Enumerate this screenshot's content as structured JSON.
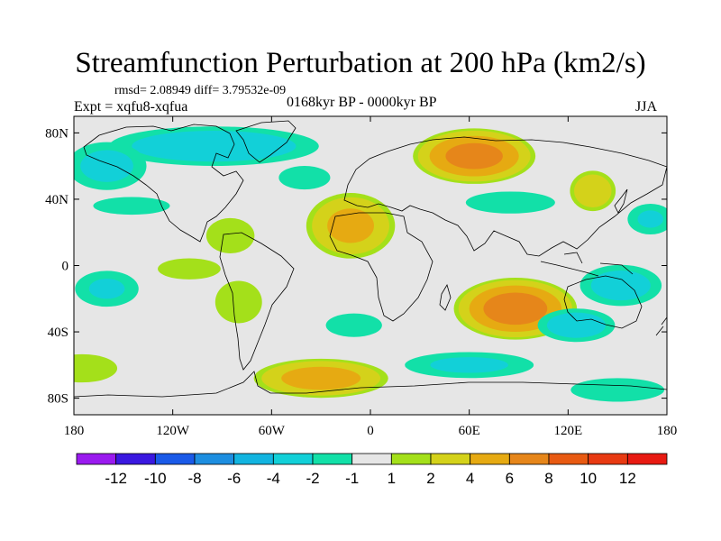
{
  "chart_data": {
    "type": "heatmap",
    "title": "Streamfunction Perturbation at 200 hPa (km2/s)",
    "stats_text": "rmsd= 2.08949  diff= 3.79532e-09",
    "left_string": "Expt = xqfu8-xqfua",
    "center_string": "0168kyr BP - 0000kyr BP",
    "right_string": "JJA",
    "xlim": [
      -180,
      180
    ],
    "ylim": [
      -90,
      90
    ],
    "x_ticks": [
      {
        "value": -180,
        "label": "180"
      },
      {
        "value": -120,
        "label": "120W"
      },
      {
        "value": -60,
        "label": "60W"
      },
      {
        "value": 0,
        "label": "0"
      },
      {
        "value": 60,
        "label": "60E"
      },
      {
        "value": 120,
        "label": "120E"
      },
      {
        "value": 180,
        "label": "180"
      }
    ],
    "y_ticks": [
      {
        "value": 80,
        "label": "80N"
      },
      {
        "value": 40,
        "label": "40N"
      },
      {
        "value": 0,
        "label": "0"
      },
      {
        "value": -40,
        "label": "40S"
      },
      {
        "value": -80,
        "label": "80S"
      }
    ],
    "contour_levels": [
      -12,
      -10,
      -8,
      -6,
      -4,
      -2,
      -1,
      1,
      2,
      4,
      6,
      8,
      10,
      12
    ],
    "colorbar_labels": [
      "-12",
      "-10",
      "-8",
      "-6",
      "-4",
      "-2",
      "-1",
      "1",
      "2",
      "4",
      "6",
      "8",
      "10",
      "12"
    ],
    "colorbar_colors": [
      "#9a1aef",
      "#3a18e0",
      "#1a5ae8",
      "#1d8ee0",
      "#12b4e0",
      "#12d0d8",
      "#12e0a8",
      "#e6e6e6",
      "#a4e01a",
      "#d4d21a",
      "#e6aa12",
      "#e6861a",
      "#e85a12",
      "#e83a12",
      "#e81a12"
    ],
    "background_color": "#e6e6e6",
    "features": [
      {
        "name": "north-atlantic-arctic-negative",
        "lon": -95,
        "lat": 72,
        "rlon": 75,
        "rlat": 14,
        "value": -3.2
      },
      {
        "name": "north-pacific-negative",
        "lon": -160,
        "lat": 60,
        "rlon": 30,
        "rlat": 18,
        "value": -2.5
      },
      {
        "name": "north-pacific-band-negative",
        "lon": -145,
        "lat": 36,
        "rlon": 35,
        "rlat": 8,
        "value": -1.6
      },
      {
        "name": "north-atlantic-negative",
        "lon": -40,
        "lat": 53,
        "rlon": 22,
        "rlat": 10,
        "value": -1.8
      },
      {
        "name": "gulf-mexico-positive",
        "lon": -85,
        "lat": 18,
        "rlon": 22,
        "rlat": 16,
        "value": 1.6
      },
      {
        "name": "west-africa-positive",
        "lon": -12,
        "lat": 24,
        "rlon": 30,
        "rlat": 22,
        "value": 4.6
      },
      {
        "name": "eurasia-positive",
        "lon": 63,
        "lat": 66,
        "rlon": 40,
        "rlat": 18,
        "value": 6.6
      },
      {
        "name": "east-asia-positive",
        "lon": 135,
        "lat": 45,
        "rlon": 16,
        "rlat": 14,
        "value": 3.6
      },
      {
        "name": "central-asia-negative",
        "lon": 85,
        "lat": 38,
        "rlon": 45,
        "rlat": 11,
        "value": -1.4
      },
      {
        "name": "north-east-pacific-negative",
        "lon": 170,
        "lat": 28,
        "rlon": 18,
        "rlat": 12,
        "value": -2.2
      },
      {
        "name": "indian-ocean-positive",
        "lon": 88,
        "lat": -26,
        "rlon": 40,
        "rlat": 20,
        "value": 7.0
      },
      {
        "name": "australia-negative",
        "lon": 125,
        "lat": -36,
        "rlon": 28,
        "rlat": 12,
        "value": -3.0
      },
      {
        "name": "south-pacific-negative",
        "lon": 152,
        "lat": -12,
        "rlon": 30,
        "rlat": 15,
        "value": -2.8
      },
      {
        "name": "south-pacific-east-negative",
        "lon": -160,
        "lat": -14,
        "rlon": 25,
        "rlat": 14,
        "value": -2.2
      },
      {
        "name": "tropical-pacific-positive",
        "lon": -110,
        "lat": -2,
        "rlon": 30,
        "rlat": 10,
        "value": 1.5
      },
      {
        "name": "south-america-positive",
        "lon": -80,
        "lat": -22,
        "rlon": 20,
        "rlat": 18,
        "value": 1.8
      },
      {
        "name": "south-atlantic-negative",
        "lon": -10,
        "lat": -36,
        "rlon": 24,
        "rlat": 10,
        "value": -1.8
      },
      {
        "name": "southern-ocean-positive",
        "lon": -30,
        "lat": -68,
        "rlon": 45,
        "rlat": 13,
        "value": 5.0
      },
      {
        "name": "southern-ocean-negative",
        "lon": 60,
        "lat": -60,
        "rlon": 50,
        "rlat": 10,
        "value": -2.3
      },
      {
        "name": "south-east-pacific-positive",
        "lon": -175,
        "lat": -62,
        "rlon": 30,
        "rlat": 12,
        "value": 1.8
      },
      {
        "name": "antarctic-pacific-negative",
        "lon": 150,
        "lat": -75,
        "rlon": 40,
        "rlat": 10,
        "value": -1.8
      }
    ]
  },
  "colors": {
    "coastline": "#000000",
    "frame": "#000000"
  }
}
